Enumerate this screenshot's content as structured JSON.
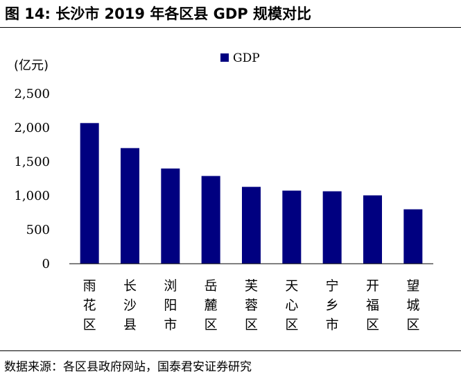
{
  "figure": {
    "title": "图 14:  长沙市 2019 年各区县  GDP  规模对比",
    "source": "数据来源：各区县政府网站，国泰君安证券研究"
  },
  "chart_data": {
    "type": "bar",
    "title": "长沙市 2019 年各区县 GDP 规模对比",
    "ylabel": "(亿元)",
    "xlabel": "",
    "categories": [
      "雨花区",
      "长沙县",
      "浏阳市",
      "岳麓区",
      "芙蓉区",
      "天心区",
      "宁乡市",
      "开福区",
      "望城区"
    ],
    "series": [
      {
        "name": "GDP",
        "values": [
          2068,
          1700,
          1400,
          1290,
          1130,
          1075,
          1065,
          1005,
          800
        ],
        "color": "#000080"
      }
    ],
    "ylim": [
      0,
      2500
    ],
    "yticks": [
      0,
      500,
      1000,
      1500,
      2000,
      2500
    ],
    "ytick_labels": [
      "0",
      "500",
      "1,000",
      "1,500",
      "2,000",
      "2,500"
    ],
    "grid": false,
    "legend": "top-center"
  },
  "colors": {
    "bar": "#000080",
    "axis": "#000000"
  }
}
